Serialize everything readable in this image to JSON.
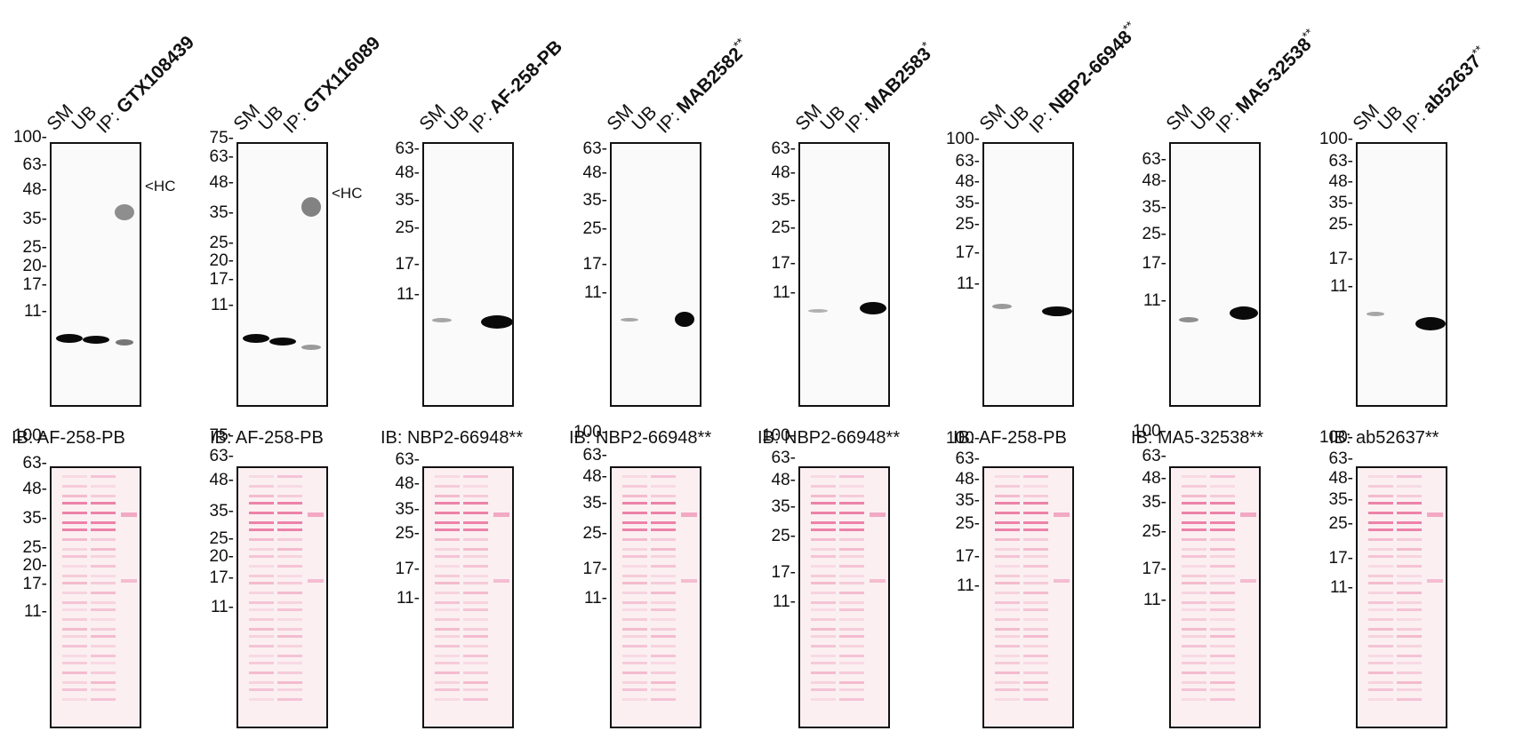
{
  "panels": [
    {
      "lane_labels": {
        "sm": "SM",
        "ub": "UB",
        "ip_prefix": "IP: ",
        "antibody": "GTX108439",
        "suffix": ""
      },
      "blot_markers": [
        "100-",
        "63-",
        "48-",
        "35-",
        "25-",
        "20-",
        "17-",
        "11-"
      ],
      "hc_label": "<HC",
      "ib_label": "IB:  AF-258-PB",
      "stain_markers": [
        "100-",
        "63-",
        "48-",
        "35-",
        "25-",
        "20-",
        "17-",
        "11-"
      ]
    },
    {
      "lane_labels": {
        "sm": "SM",
        "ub": "UB",
        "ip_prefix": "IP: ",
        "antibody": "GTX116089",
        "suffix": ""
      },
      "blot_markers": [
        "75-",
        "63-",
        "48-",
        "35-",
        "25-",
        "20-",
        "17-",
        "11-"
      ],
      "hc_label": "<HC",
      "ib_label": "IB:  AF-258-PB",
      "stain_markers": [
        "75-",
        "63-",
        "48-",
        "35-",
        "25-",
        "20-",
        "17-",
        "11-"
      ]
    },
    {
      "lane_labels": {
        "sm": "SM",
        "ub": "UB",
        "ip_prefix": "IP: ",
        "antibody": "AF-258-PB",
        "suffix": ""
      },
      "blot_markers": [
        "63-",
        "48-",
        "35-",
        "25-",
        "17-",
        "11-"
      ],
      "hc_label": "",
      "ib_label": "IB: NBP2-66948**",
      "stain_markers": [
        "63-",
        "48-",
        "35-",
        "25-",
        "17-",
        "11-"
      ]
    },
    {
      "lane_labels": {
        "sm": "SM",
        "ub": "UB",
        "ip_prefix": "IP: ",
        "antibody": "MAB2582",
        "suffix": "**"
      },
      "blot_markers": [
        "63-",
        "48-",
        "35-",
        "25-",
        "17-",
        "11-"
      ],
      "hc_label": "",
      "ib_label": "IB: NBP2-66948**",
      "stain_markers": [
        "100-",
        "63-",
        "48-",
        "35-",
        "25-",
        "17-",
        "11-"
      ]
    },
    {
      "lane_labels": {
        "sm": "SM",
        "ub": "UB",
        "ip_prefix": "IP: ",
        "antibody": "MAB2583",
        "suffix": "*"
      },
      "blot_markers": [
        "63-",
        "48-",
        "35-",
        "25-",
        "17-",
        "11-"
      ],
      "hc_label": "",
      "ib_label": "IB: NBP2-66948**",
      "stain_markers": [
        "100-",
        "63-",
        "48-",
        "35-",
        "25-",
        "17-",
        "11-"
      ]
    },
    {
      "lane_labels": {
        "sm": "SM",
        "ub": "UB",
        "ip_prefix": "IP: ",
        "antibody": "NBP2-66948",
        "suffix": "**"
      },
      "blot_markers": [
        "100-",
        "63-",
        "48-",
        "35-",
        "25-",
        "17-",
        "11-"
      ],
      "hc_label": "",
      "ib_label": "IB:  AF-258-PB",
      "stain_markers": [
        "100-",
        "63-",
        "48-",
        "35-",
        "25-",
        "17-",
        "11-"
      ]
    },
    {
      "lane_labels": {
        "sm": "SM",
        "ub": "UB",
        "ip_prefix": "IP: ",
        "antibody": "MA5-32538",
        "suffix": "**"
      },
      "blot_markers": [
        "63-",
        "48-",
        "35-",
        "25-",
        "17-",
        "11-"
      ],
      "hc_label": "",
      "ib_label": "IB: MA5-32538**",
      "stain_markers": [
        "100-",
        "63-",
        "48-",
        "35-",
        "25-",
        "17-",
        "11-"
      ]
    },
    {
      "lane_labels": {
        "sm": "SM",
        "ub": "UB",
        "ip_prefix": "IP: ",
        "antibody": "ab52637",
        "suffix": "**"
      },
      "blot_markers": [
        "100-",
        "63-",
        "48-",
        "35-",
        "25-",
        "17-",
        "11-"
      ],
      "hc_label": "",
      "ib_label": "IB: ab52637**",
      "stain_markers": [
        "100-",
        "63-",
        "48-",
        "35-",
        "25-",
        "17-",
        "11-"
      ]
    }
  ]
}
